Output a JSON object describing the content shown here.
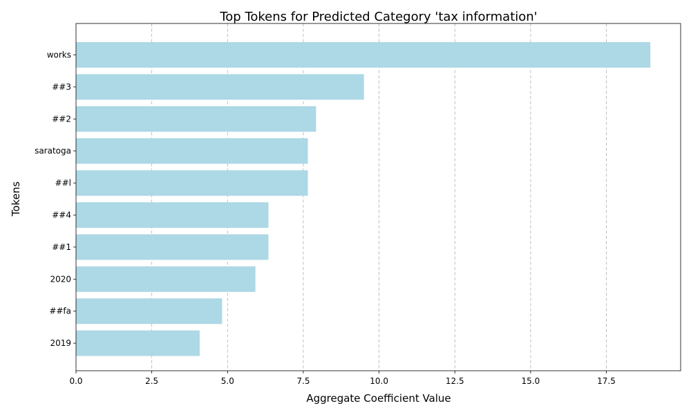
{
  "chart_data": {
    "type": "bar",
    "orientation": "horizontal",
    "title": "Top Tokens for Predicted Category 'tax information'",
    "xlabel": "Aggregate Coefficient Value",
    "ylabel": "Tokens",
    "categories": [
      "works",
      "##3",
      "##2",
      "saratoga",
      "##l",
      "##4",
      "##1",
      "2020",
      "##fa",
      "2019"
    ],
    "values": [
      18.95,
      9.5,
      7.92,
      7.65,
      7.65,
      6.35,
      6.35,
      5.92,
      4.82,
      4.08
    ],
    "xlim": [
      0,
      19.95
    ],
    "xticks": [
      0.0,
      2.5,
      5.0,
      7.5,
      10.0,
      12.5,
      15.0,
      17.5
    ],
    "xtick_labels": [
      "0.0",
      "2.5",
      "5.0",
      "7.5",
      "10.0",
      "12.5",
      "15.0",
      "17.5"
    ],
    "grid": {
      "x": true,
      "y": false
    },
    "colors": {
      "bar": "#add8e6"
    }
  }
}
